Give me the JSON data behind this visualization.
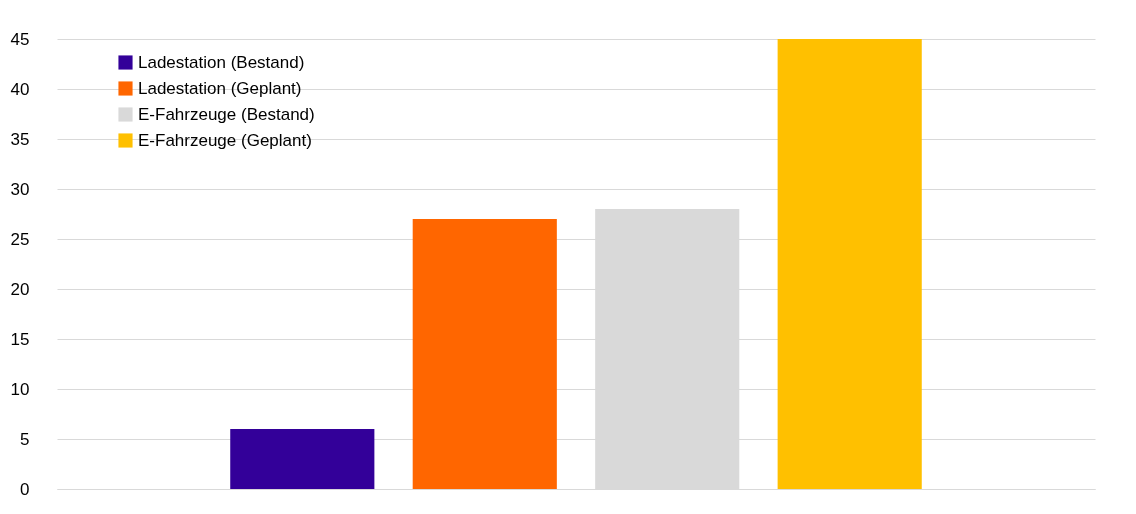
{
  "chart_data": {
    "type": "bar",
    "categories": [
      null
    ],
    "series": [
      {
        "name": "Ladestation (Bestand)",
        "color": "#330099",
        "values": [
          6
        ]
      },
      {
        "name": "Ladestation (Geplant)",
        "color": "#ff6600",
        "values": [
          27
        ]
      },
      {
        "name": "E-Fahrzeuge (Bestand)",
        "color": "#d9d9d9",
        "values": [
          28
        ]
      },
      {
        "name": "E-Fahrzeuge (Geplant)",
        "color": "#ffc000",
        "values": [
          45
        ]
      }
    ],
    "ylim": [
      0,
      45
    ],
    "yticks": [
      0,
      5,
      10,
      15,
      20,
      25,
      30,
      35,
      40,
      45
    ],
    "grid": "y",
    "legend": "top left",
    "tick_labels": "y"
  }
}
